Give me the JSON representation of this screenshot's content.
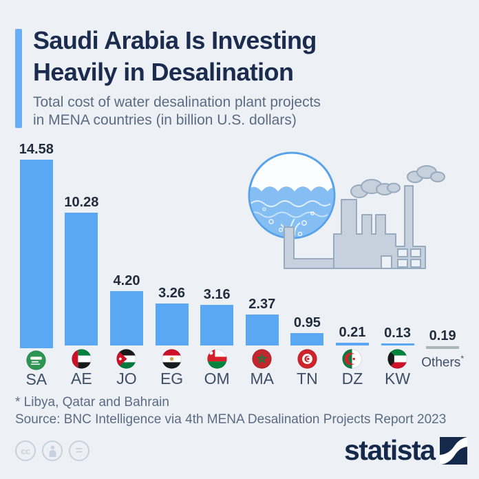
{
  "header": {
    "title_line1": "Saudi Arabia Is Investing",
    "title_line2": "Heavily in Desalination",
    "subtitle_line1": "Total cost of water desalination plant projects",
    "subtitle_line2": "in MENA countries (in billion U.S. dollars)"
  },
  "chart_data": {
    "type": "bar",
    "title": "Total cost of water desalination plant projects in MENA countries (in billion U.S. dollars)",
    "unit": "billion U.S. dollars",
    "ylim": [
      0,
      15
    ],
    "grid": false,
    "value_labels_shown": true,
    "categories": [
      "SA",
      "AE",
      "JO",
      "EG",
      "OM",
      "MA",
      "TN",
      "DZ",
      "KW",
      "Others*"
    ],
    "values": [
      14.58,
      10.28,
      4.2,
      3.26,
      3.16,
      2.37,
      0.95,
      0.21,
      0.13,
      0.19
    ],
    "bar_color": "#5AA7F3",
    "others_color": "#A9B7BD",
    "countries": [
      {
        "code": "SA",
        "country": "Saudi Arabia",
        "flag": "saudi-arabia",
        "value": 14.58,
        "label": "14.58"
      },
      {
        "code": "AE",
        "country": "United Arab Emirates",
        "flag": "uae",
        "value": 10.28,
        "label": "10.28"
      },
      {
        "code": "JO",
        "country": "Jordan",
        "flag": "jordan",
        "value": 4.2,
        "label": "4.20"
      },
      {
        "code": "EG",
        "country": "Egypt",
        "flag": "egypt",
        "value": 3.26,
        "label": "3.26"
      },
      {
        "code": "OM",
        "country": "Oman",
        "flag": "oman",
        "value": 3.16,
        "label": "3.16"
      },
      {
        "code": "MA",
        "country": "Morocco",
        "flag": "morocco",
        "value": 2.37,
        "label": "2.37"
      },
      {
        "code": "TN",
        "country": "Tunisia",
        "flag": "tunisia",
        "value": 0.95,
        "label": "0.95"
      },
      {
        "code": "DZ",
        "country": "Algeria",
        "flag": "algeria",
        "value": 0.21,
        "label": "0.21"
      },
      {
        "code": "KW",
        "country": "Kuwait",
        "flag": "kuwait",
        "value": 0.13,
        "label": "0.13"
      },
      {
        "code": "Others",
        "country": "Others",
        "flag": null,
        "value": 0.19,
        "label": "0.19",
        "sup": "*",
        "is_other": true
      }
    ]
  },
  "footer": {
    "footnote": "* Libya, Qatar and Bahrain",
    "source": "Source: BNC Intelligence via 4th MENA Desalination Projects Report 2023",
    "brand": "statista",
    "license_icons": [
      "cc",
      "attribution",
      "equal"
    ]
  },
  "colors": {
    "background": "#EDF1F6",
    "accent_blue": "#69ADF4",
    "bar_blue": "#5AA7F3",
    "others_gray": "#A9B7BD",
    "title_navy": "#1B2C4E",
    "subtitle_gray": "#5B6B83",
    "brand_navy": "#15294B"
  }
}
